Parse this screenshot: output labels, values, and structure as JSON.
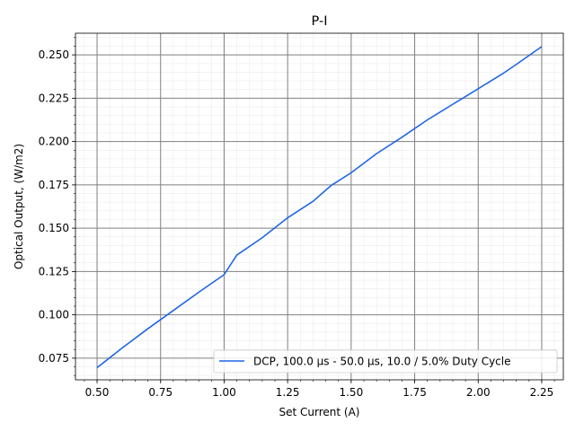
{
  "chart_data": {
    "type": "line",
    "title": "P-I",
    "xlabel": "Set Current (A)",
    "ylabel": "Optical Output, (W/m2)",
    "xlim": [
      0.415,
      2.335
    ],
    "ylim": [
      0.0625,
      0.2625
    ],
    "xticks": [
      0.5,
      0.75,
      1.0,
      1.25,
      1.5,
      1.75,
      2.0,
      2.25
    ],
    "xtick_labels": [
      "0.50",
      "0.75",
      "1.00",
      "1.25",
      "1.50",
      "1.75",
      "2.00",
      "2.25"
    ],
    "yticks": [
      0.075,
      0.1,
      0.125,
      0.15,
      0.175,
      0.2,
      0.225,
      0.25
    ],
    "ytick_labels": [
      "0.075",
      "0.100",
      "0.125",
      "0.150",
      "0.175",
      "0.200",
      "0.225",
      "0.250"
    ],
    "grid": true,
    "minor_grid": true,
    "legend_position": "lower-right",
    "series": [
      {
        "name": "DCP, 100.0 µs - 50.0 µs, 10.0 / 5.0% Duty Cycle",
        "color": "#1f66e5",
        "x": [
          0.5,
          0.6,
          0.7,
          0.8,
          0.9,
          1.0,
          1.05,
          1.15,
          1.25,
          1.35,
          1.42,
          1.5,
          1.6,
          1.7,
          1.8,
          1.9,
          2.0,
          2.1,
          2.15,
          2.25
        ],
        "y": [
          0.0695,
          0.081,
          0.092,
          0.1025,
          0.113,
          0.1232,
          0.1345,
          0.1445,
          0.156,
          0.1655,
          0.1745,
          0.182,
          0.193,
          0.2025,
          0.2125,
          0.2215,
          0.2305,
          0.2395,
          0.2445,
          0.2548
        ]
      }
    ]
  }
}
